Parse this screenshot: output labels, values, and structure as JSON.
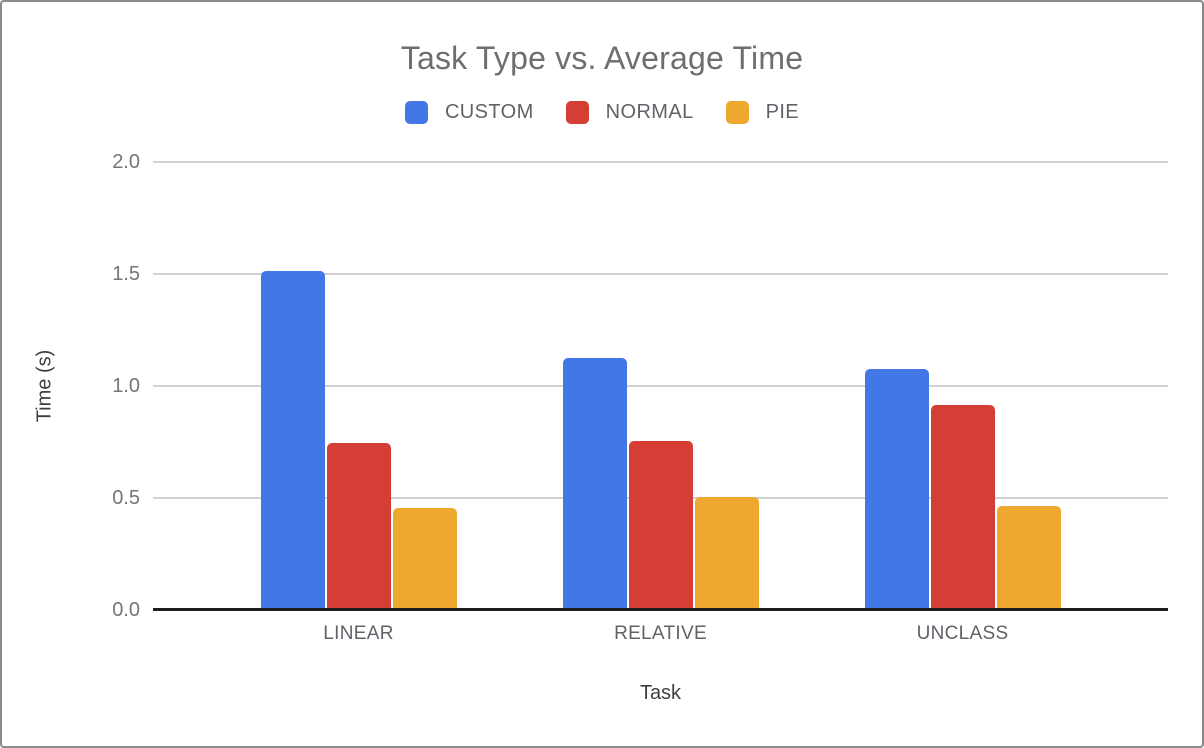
{
  "window": {
    "background": "#ffffff",
    "border_color": "#8a8a8a"
  },
  "chart_data": {
    "type": "bar",
    "title": "Task Type vs. Average Time",
    "xlabel": "Task",
    "ylabel": "Time (s)",
    "categories": [
      "LINEAR",
      "RELATIVE",
      "UNCLASS"
    ],
    "series": [
      {
        "name": "CUSTOM",
        "color": "#4377E6",
        "values": [
          1.51,
          1.12,
          1.07
        ]
      },
      {
        "name": "NORMAL",
        "color": "#D43E34",
        "values": [
          0.74,
          0.75,
          0.91
        ]
      },
      {
        "name": "PIE",
        "color": "#EFA82F",
        "values": [
          0.45,
          0.5,
          0.46
        ]
      }
    ],
    "ylim": [
      0,
      2.0
    ],
    "yticks": [
      0.0,
      0.5,
      1.0,
      1.5,
      2.0
    ],
    "ytick_labels": [
      "0.0",
      "0.5",
      "1.0",
      "1.5",
      "2.0"
    ],
    "grid": true,
    "legend_position": "top",
    "colors": {
      "title_text": "#6e6e6e",
      "tick_text": "#757575",
      "category_text": "#5f6368",
      "axis_title_text": "#3d4043",
      "gridline": "#d2d2d2",
      "axis_line": "#1e1e1e"
    }
  }
}
